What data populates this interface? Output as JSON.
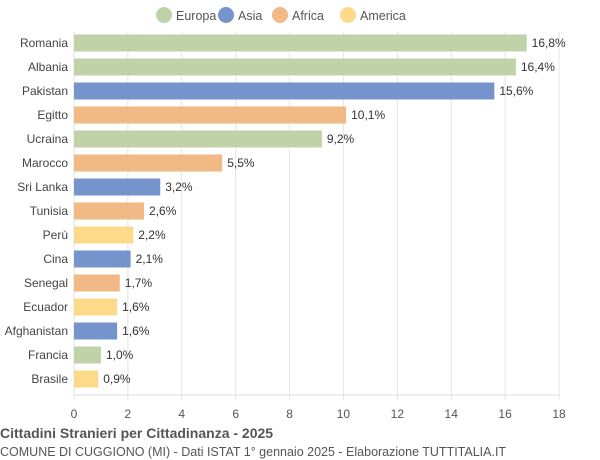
{
  "chart_data": {
    "type": "bar",
    "orientation": "horizontal",
    "title": "Cittadini Stranieri per Cittadinanza - 2025",
    "subtitle": "COMUNE DI CUGGIONO (MI) - Dati ISTAT 1° gennaio 2025 - Elaborazione TUTTITALIA.IT",
    "legend": {
      "position": "top",
      "entries": [
        {
          "name": "Europa",
          "color": "#c0d2a8"
        },
        {
          "name": "Asia",
          "color": "#7594cc"
        },
        {
          "name": "Africa",
          "color": "#f0b986"
        },
        {
          "name": "America",
          "color": "#fdd98a"
        }
      ]
    },
    "xlim": [
      0,
      18
    ],
    "xticks": [
      0,
      2,
      4,
      6,
      8,
      10,
      12,
      14,
      16,
      18
    ],
    "grid": true,
    "categories": [
      "Romania",
      "Albania",
      "Pakistan",
      "Egitto",
      "Ucraina",
      "Marocco",
      "Sri Lanka",
      "Tunisia",
      "Perù",
      "Cina",
      "Senegal",
      "Ecuador",
      "Afghanistan",
      "Francia",
      "Brasile"
    ],
    "values": [
      16.8,
      16.4,
      15.6,
      10.1,
      9.2,
      5.5,
      3.2,
      2.6,
      2.2,
      2.1,
      1.7,
      1.6,
      1.6,
      1.0,
      0.9
    ],
    "labels": [
      "16,8%",
      "16,4%",
      "15,6%",
      "10,1%",
      "9,2%",
      "5,5%",
      "3,2%",
      "2,6%",
      "2,2%",
      "2,1%",
      "1,7%",
      "1,6%",
      "1,6%",
      "1,0%",
      "0,9%"
    ],
    "groups": [
      "Europa",
      "Europa",
      "Asia",
      "Africa",
      "Europa",
      "Africa",
      "Asia",
      "Africa",
      "America",
      "Asia",
      "Africa",
      "America",
      "Asia",
      "Europa",
      "America"
    ]
  }
}
